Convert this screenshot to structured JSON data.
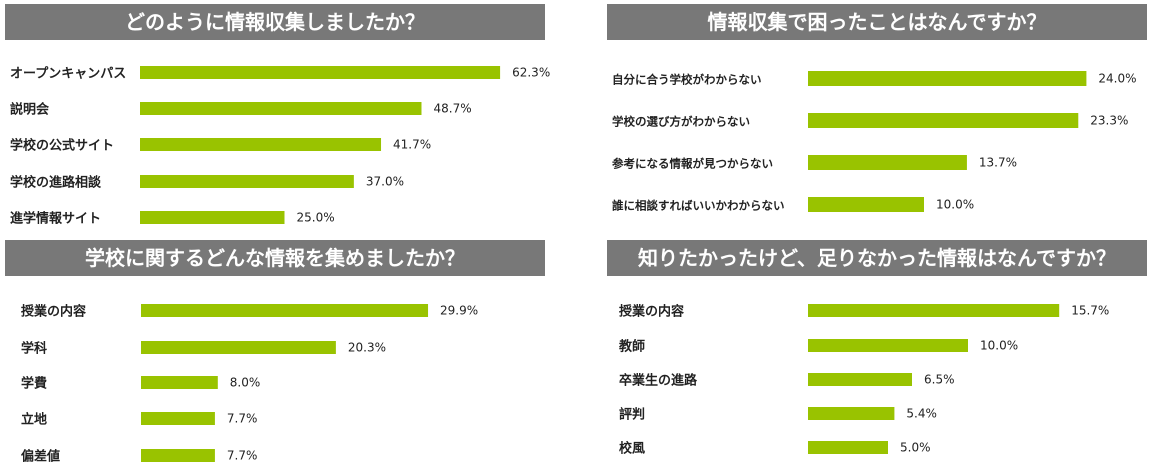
{
  "chart_data": [
    {
      "type": "bar",
      "orientation": "horizontal",
      "title": "どのように情報収集しましたか？",
      "categories": [
        "オープンキャンパス",
        "説明会",
        "学校の公式サイト",
        "学校の進路相談",
        "進学情報サイト"
      ],
      "values": [
        62.3,
        48.7,
        41.7,
        37.0,
        25.0
      ],
      "value_labels": [
        "62.3%",
        "48.7%",
        "41.7%",
        "37.0%",
        "25.0%"
      ],
      "unit": "%",
      "color": "#99c300",
      "grid": false
    },
    {
      "type": "bar",
      "orientation": "horizontal",
      "title": "情報収集で困ったことはなんですか？",
      "categories": [
        "自分に合う学校がわからない",
        "学校の選び方がわからない",
        "参考になる情報が見つからない",
        "誰に相談すればいいかわからない"
      ],
      "values": [
        24.0,
        23.3,
        13.7,
        10.0
      ],
      "value_labels": [
        "24.0%",
        "23.3%",
        "13.7%",
        "10.0%"
      ],
      "unit": "%",
      "color": "#99c300",
      "grid": false
    },
    {
      "type": "bar",
      "orientation": "horizontal",
      "title": "学校に関するどんな情報を集めましたか？",
      "categories": [
        "授業の内容",
        "学科",
        "学費",
        "立地",
        "偏差値"
      ],
      "values": [
        29.9,
        20.3,
        8.0,
        7.7,
        7.7
      ],
      "value_labels": [
        "29.9%",
        "20.3%",
        "8.0%",
        "7.7%",
        "7.7%"
      ],
      "unit": "%",
      "color": "#99c300",
      "grid": false
    },
    {
      "type": "bar",
      "orientation": "horizontal",
      "title": "知りたかったけど、足りなかった情報はなんですか？",
      "categories": [
        "授業の内容",
        "教師",
        "卒業生の進路",
        "評判",
        "校風"
      ],
      "values": [
        15.7,
        10.0,
        6.5,
        5.4,
        5.0
      ],
      "value_labels": [
        "15.7%",
        "10.0%",
        "6.5%",
        "5.4%",
        "5.0%"
      ],
      "unit": "%",
      "color": "#99c300",
      "grid": false
    }
  ]
}
